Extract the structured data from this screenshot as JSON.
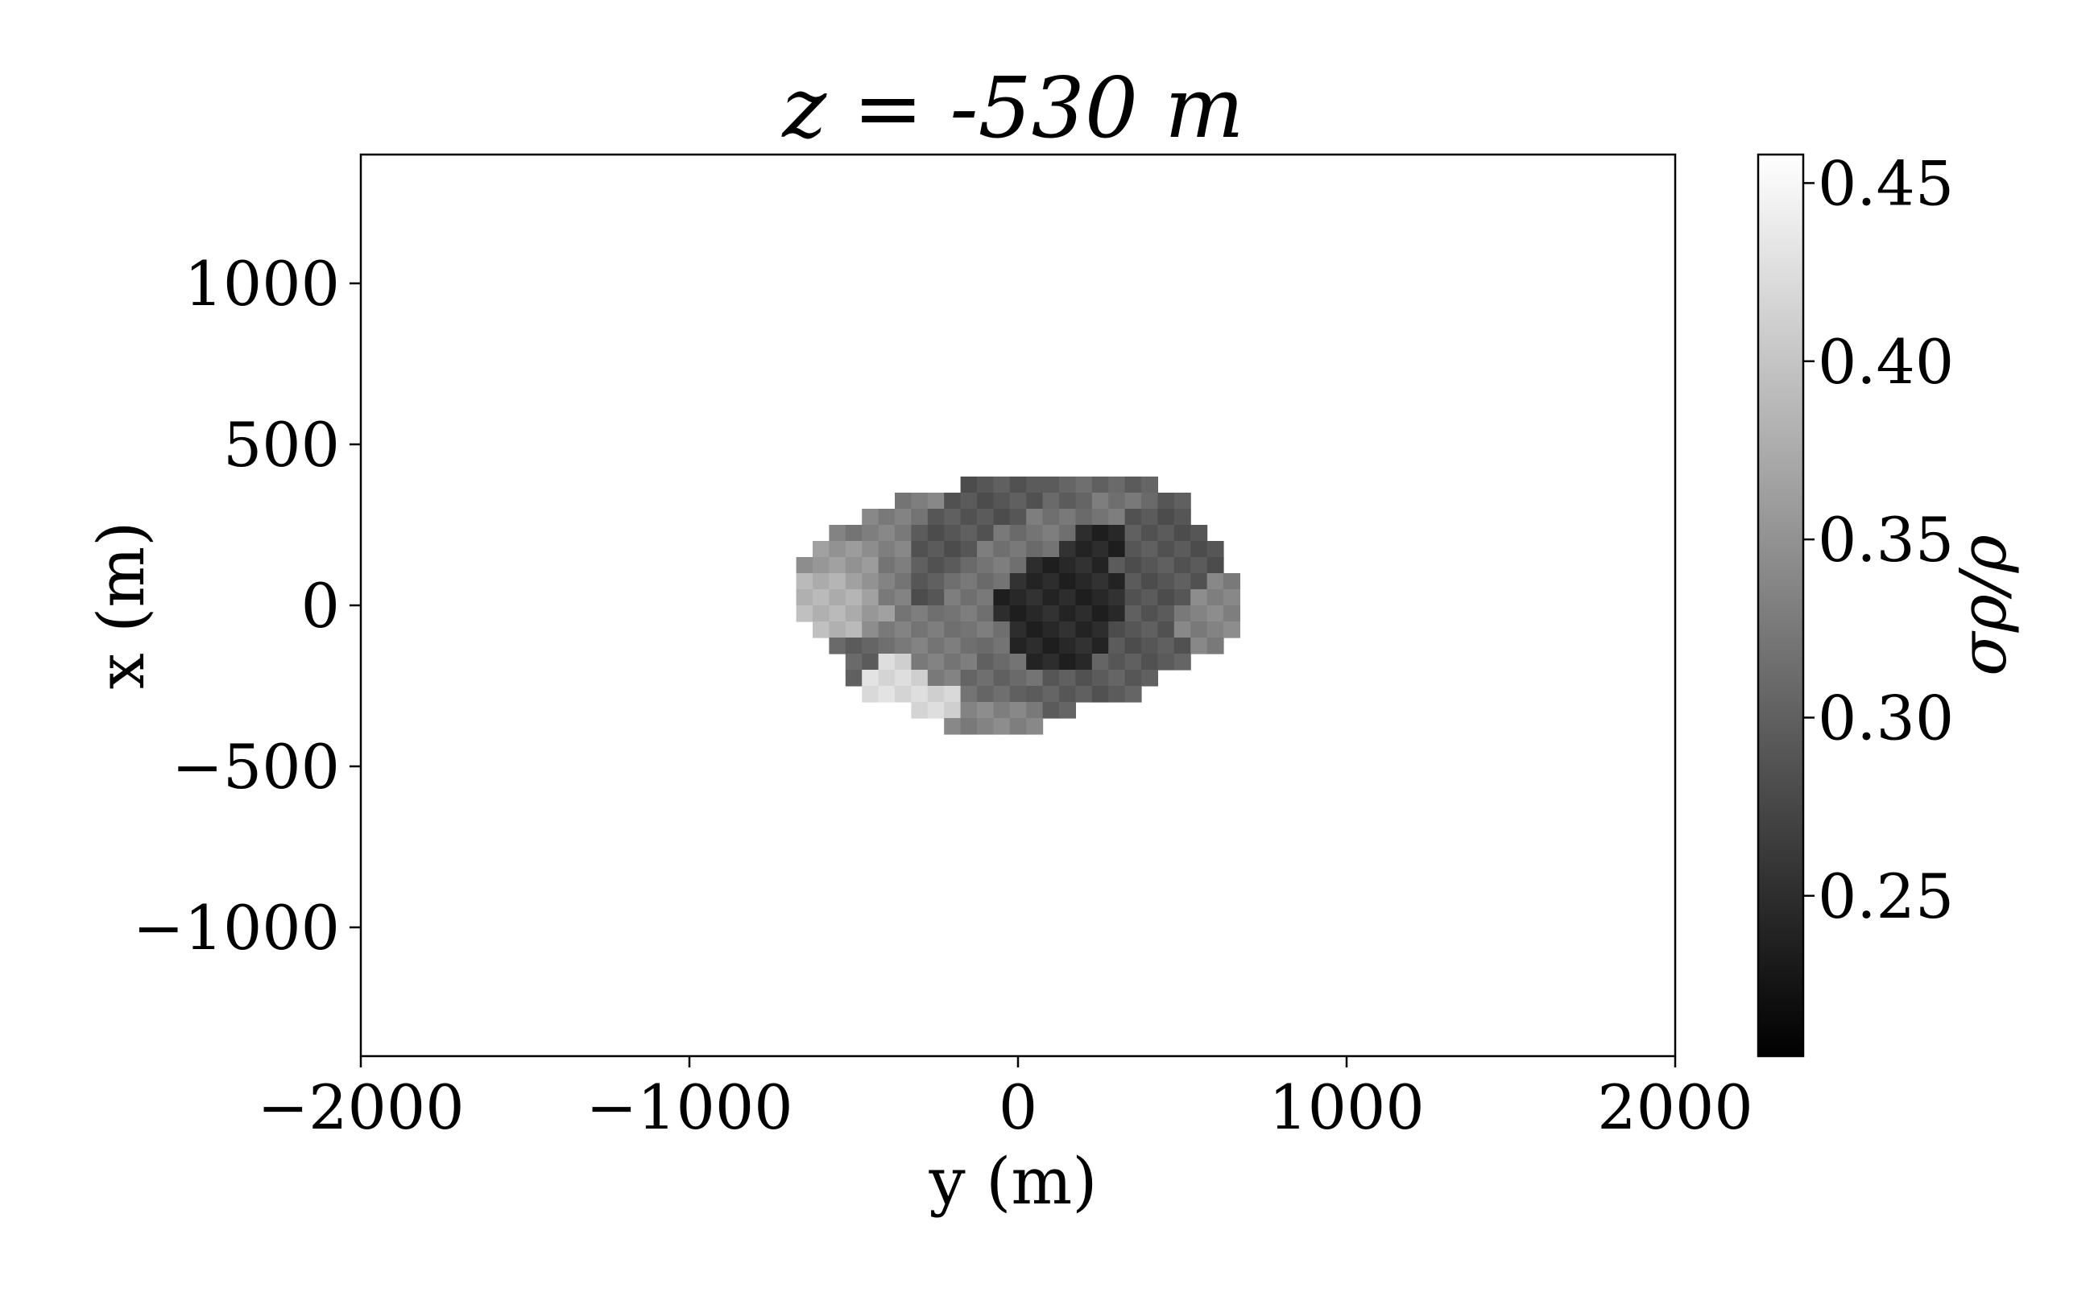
{
  "chart_data": {
    "type": "heatmap",
    "title": "z = -530 m",
    "xlabel": "y (m)",
    "ylabel": "x (m)",
    "xlim": [
      -2000,
      2000
    ],
    "ylim": [
      -1400,
      1400
    ],
    "x_ticks": [
      "−2000",
      "−1000",
      "0",
      "1000",
      "2000"
    ],
    "y_ticks": [
      "1000",
      "500",
      "0",
      "−500",
      "−1000"
    ],
    "colorbar": {
      "label": "σρ/ρ",
      "range": [
        0.205,
        0.458
      ],
      "ticks": [
        "0.25",
        "0.30",
        "0.35",
        "0.40",
        "0.45"
      ],
      "colormap": "gray"
    },
    "cell_size_m": 50,
    "grid": {
      "x0": -675,
      "y0": 400,
      "rows": [
        "..........TTTTTGGGGGGG....................",
        "......RRRTTTTTTGGGUUUUTT..................",
        "....RRRRTTTTTTUUUUUUDDDD..................",
        "..RRRRRTTTTTUUUUUVVVDDDDD.................",
        ".PPPPRRTTTTUUUUUVVVVDDDDDD................",
        "PPPPPRRTTTUUUUVVVVVDDDDDDD................",
        "LLLPPRRTTUUUUVVVVVVVDDDDDNN...............",
        "LLLLPRRTTUUUVVVVVVVVDDDDNNN...............",
        "LLLLPPCCCUUUVVVVVVVVDDDNNNN...............",
        ".LLLPCCCCCUUUVVVVVVDDDDNNNN...............",
        "..HHHCCCCCCKKVVVVVVDDDDDNN................",
        "...HHWWCCCCKKKVVVVEEEEEE..................",
        "...HWWWWCCKKKKKEEEEEEE....................",
        "....WWWWWWKKKKEEEEEEE.....................",
        ".......WWWMMMMMEE.........................",
        ".........MMMMMM..........................."
      ]
    },
    "zones": {
      "T": 0.29,
      "G": 0.305,
      "U": 0.32,
      "R": 0.33,
      "P": 0.355,
      "L": 0.385,
      "C": 0.325,
      "H": 0.3,
      "W": 0.42,
      "K": 0.31,
      "M": 0.335,
      "E": 0.295,
      "D": 0.29,
      "V": 0.245,
      "N": 0.335
    }
  }
}
